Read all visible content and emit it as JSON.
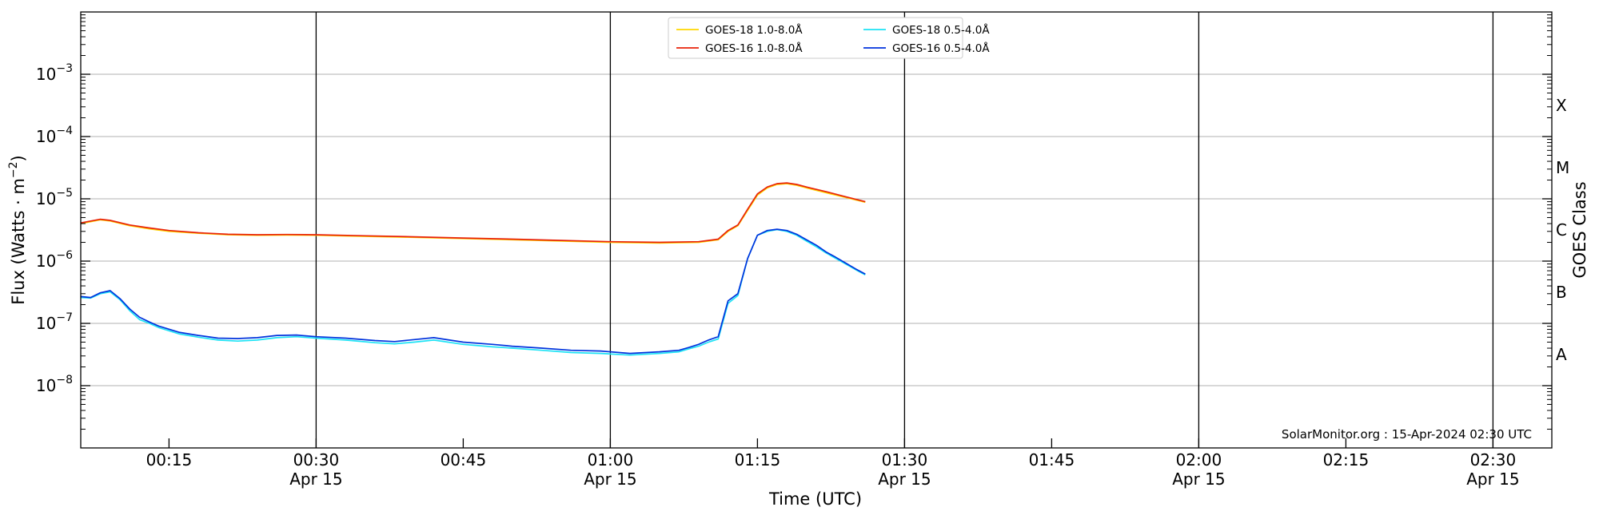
{
  "chart_data": {
    "type": "line",
    "title": "",
    "xlabel": "Time (UTC)",
    "ylabel": "Flux (Watts · m",
    "ylabel_exponent": "−2",
    "ylabel_close": ")",
    "y_scale": "log",
    "ylim": [
      1e-09,
      0.01
    ],
    "xlim": [
      "00:06",
      "02:36"
    ],
    "grid": "horizontal",
    "legend_position": "top-center",
    "y_ticks": [
      {
        "value": 1e-08,
        "base": "10",
        "exp": "−8"
      },
      {
        "value": 1e-07,
        "base": "10",
        "exp": "−7"
      },
      {
        "value": 1e-06,
        "base": "10",
        "exp": "−6"
      },
      {
        "value": 1e-05,
        "base": "10",
        "exp": "−5"
      },
      {
        "value": 0.0001,
        "base": "10",
        "exp": "−4"
      },
      {
        "value": 0.001,
        "base": "10",
        "exp": "−3"
      }
    ],
    "x_ticks": [
      {
        "time": "00:15",
        "label": "00:15",
        "date": ""
      },
      {
        "time": "00:30",
        "label": "00:30",
        "date": "Apr 15"
      },
      {
        "time": "00:45",
        "label": "00:45",
        "date": ""
      },
      {
        "time": "01:00",
        "label": "01:00",
        "date": "Apr 15"
      },
      {
        "time": "01:15",
        "label": "01:15",
        "date": ""
      },
      {
        "time": "01:30",
        "label": "01:30",
        "date": "Apr 15"
      },
      {
        "time": "01:45",
        "label": "01:45",
        "date": ""
      },
      {
        "time": "02:00",
        "label": "02:00",
        "date": "Apr 15"
      },
      {
        "time": "02:15",
        "label": "02:15",
        "date": ""
      },
      {
        "time": "02:30",
        "label": "02:30",
        "date": "Apr 15"
      }
    ],
    "vertical_lines": [
      "00:30",
      "01:00",
      "01:30",
      "02:00",
      "02:30"
    ],
    "right_axis": {
      "label": "GOES Class",
      "classes": [
        {
          "name": "A",
          "value": 3.16e-08
        },
        {
          "name": "B",
          "value": 3.16e-07
        },
        {
          "name": "C",
          "value": 3.16e-06
        },
        {
          "name": "M",
          "value": 3.16e-05
        },
        {
          "name": "X",
          "value": 0.000316
        }
      ]
    },
    "annotation": "SolarMonitor.org : 15-Apr-2024 02:30 UTC",
    "series": [
      {
        "name": "GOES-18 1.0-8.0Å",
        "color": "#ffd700",
        "x": [
          "00:06",
          "00:08",
          "00:09",
          "00:11",
          "00:13",
          "00:15",
          "00:18",
          "00:21",
          "00:24",
          "00:27",
          "00:30",
          "00:35",
          "00:40",
          "00:45",
          "00:50",
          "00:55",
          "01:00",
          "01:05",
          "01:09",
          "01:10",
          "01:11",
          "01:12",
          "01:13",
          "01:14",
          "01:15",
          "01:16",
          "01:17",
          "01:18",
          "01:19",
          "01:20",
          "01:22",
          "01:24",
          "01:26"
        ],
        "y": [
          4e-06,
          4.6e-06,
          4.4e-06,
          3.7e-06,
          3.3e-06,
          3e-06,
          2.8e-06,
          2.65e-06,
          2.6e-06,
          2.62e-06,
          2.6e-06,
          2.5e-06,
          2.4e-06,
          2.3e-06,
          2.2e-06,
          2.1e-06,
          2e-06,
          1.95e-06,
          2e-06,
          2.1e-06,
          2.2e-06,
          3e-06,
          3.7e-06,
          6.5e-06,
          1.15e-05,
          1.5e-05,
          1.7e-05,
          1.75e-05,
          1.65e-05,
          1.5e-05,
          1.25e-05,
          1.05e-05,
          8.8e-06
        ]
      },
      {
        "name": "GOES-16 1.0-8.0Å",
        "color": "#e8220a",
        "x": [
          "00:06",
          "00:08",
          "00:09",
          "00:11",
          "00:13",
          "00:15",
          "00:18",
          "00:21",
          "00:24",
          "00:27",
          "00:30",
          "00:35",
          "00:40",
          "00:45",
          "00:50",
          "00:55",
          "01:00",
          "01:05",
          "01:09",
          "01:10",
          "01:11",
          "01:12",
          "01:13",
          "01:14",
          "01:15",
          "01:16",
          "01:17",
          "01:18",
          "01:19",
          "01:20",
          "01:22",
          "01:24",
          "01:26"
        ],
        "y": [
          4.1e-06,
          4.7e-06,
          4.5e-06,
          3.8e-06,
          3.4e-06,
          3.1e-06,
          2.85e-06,
          2.7e-06,
          2.65e-06,
          2.67e-06,
          2.65e-06,
          2.55e-06,
          2.45e-06,
          2.35e-06,
          2.25e-06,
          2.15e-06,
          2.05e-06,
          2e-06,
          2.05e-06,
          2.15e-06,
          2.25e-06,
          3.1e-06,
          3.8e-06,
          6.8e-06,
          1.2e-05,
          1.55e-05,
          1.75e-05,
          1.8e-05,
          1.7e-05,
          1.55e-05,
          1.3e-05,
          1.08e-05,
          9e-06
        ]
      },
      {
        "name": "GOES-18 0.5-4.0Å",
        "color": "#1ee3f5",
        "x": [
          "00:06",
          "00:07",
          "00:08",
          "00:09",
          "00:10",
          "00:11",
          "00:12",
          "00:13",
          "00:14",
          "00:16",
          "00:18",
          "00:20",
          "00:22",
          "00:24",
          "00:26",
          "00:28",
          "00:30",
          "00:33",
          "00:36",
          "00:38",
          "00:40",
          "00:42",
          "00:45",
          "00:48",
          "00:50",
          "00:53",
          "00:56",
          "00:59",
          "01:02",
          "01:05",
          "01:07",
          "01:08",
          "01:09",
          "01:10",
          "01:11",
          "01:12",
          "01:13",
          "01:14",
          "01:15",
          "01:16",
          "01:17",
          "01:18",
          "01:19",
          "01:20",
          "01:21",
          "01:22",
          "01:23",
          "01:24",
          "01:25",
          "01:26"
        ],
        "y": [
          2.6e-07,
          2.55e-07,
          3e-07,
          3.2e-07,
          2.4e-07,
          1.6e-07,
          1.15e-07,
          1e-07,
          8.5e-08,
          6.8e-08,
          6e-08,
          5.4e-08,
          5.2e-08,
          5.4e-08,
          5.9e-08,
          6.1e-08,
          5.8e-08,
          5.4e-08,
          4.9e-08,
          4.7e-08,
          5e-08,
          5.4e-08,
          4.6e-08,
          4.2e-08,
          4e-08,
          3.7e-08,
          3.4e-08,
          3.3e-08,
          3.1e-08,
          3.3e-08,
          3.5e-08,
          3.9e-08,
          4.3e-08,
          5e-08,
          5.6e-08,
          2.1e-07,
          2.8e-07,
          1.1e-06,
          2.6e-06,
          3e-06,
          3.2e-06,
          3e-06,
          2.6e-06,
          2.1e-06,
          1.7e-06,
          1.35e-06,
          1.1e-06,
          9e-07,
          7.3e-07,
          6e-07
        ]
      },
      {
        "name": "GOES-16 0.5-4.0Å",
        "color": "#0033dd",
        "x": [
          "00:06",
          "00:07",
          "00:08",
          "00:09",
          "00:10",
          "00:11",
          "00:12",
          "00:13",
          "00:14",
          "00:16",
          "00:18",
          "00:20",
          "00:22",
          "00:24",
          "00:26",
          "00:28",
          "00:30",
          "00:33",
          "00:36",
          "00:38",
          "00:40",
          "00:42",
          "00:45",
          "00:48",
          "00:50",
          "00:53",
          "00:56",
          "00:59",
          "01:02",
          "01:05",
          "01:07",
          "01:08",
          "01:09",
          "01:10",
          "01:11",
          "01:12",
          "01:13",
          "01:14",
          "01:15",
          "01:16",
          "01:17",
          "01:18",
          "01:19",
          "01:20",
          "01:21",
          "01:22",
          "01:23",
          "01:24",
          "01:25",
          "01:26"
        ],
        "y": [
          2.7e-07,
          2.6e-07,
          3.1e-07,
          3.35e-07,
          2.5e-07,
          1.7e-07,
          1.25e-07,
          1.05e-07,
          9e-08,
          7.2e-08,
          6.4e-08,
          5.8e-08,
          5.7e-08,
          5.9e-08,
          6.4e-08,
          6.5e-08,
          6.1e-08,
          5.8e-08,
          5.3e-08,
          5.1e-08,
          5.5e-08,
          5.9e-08,
          5e-08,
          4.6e-08,
          4.3e-08,
          4e-08,
          3.7e-08,
          3.6e-08,
          3.3e-08,
          3.5e-08,
          3.7e-08,
          4.1e-08,
          4.6e-08,
          5.4e-08,
          6.1e-08,
          2.3e-07,
          3e-07,
          1.1e-06,
          2.6e-06,
          3.1e-06,
          3.25e-06,
          3.1e-06,
          2.7e-06,
          2.2e-06,
          1.8e-06,
          1.4e-06,
          1.15e-06,
          9.3e-07,
          7.5e-07,
          6.2e-07
        ]
      }
    ]
  }
}
